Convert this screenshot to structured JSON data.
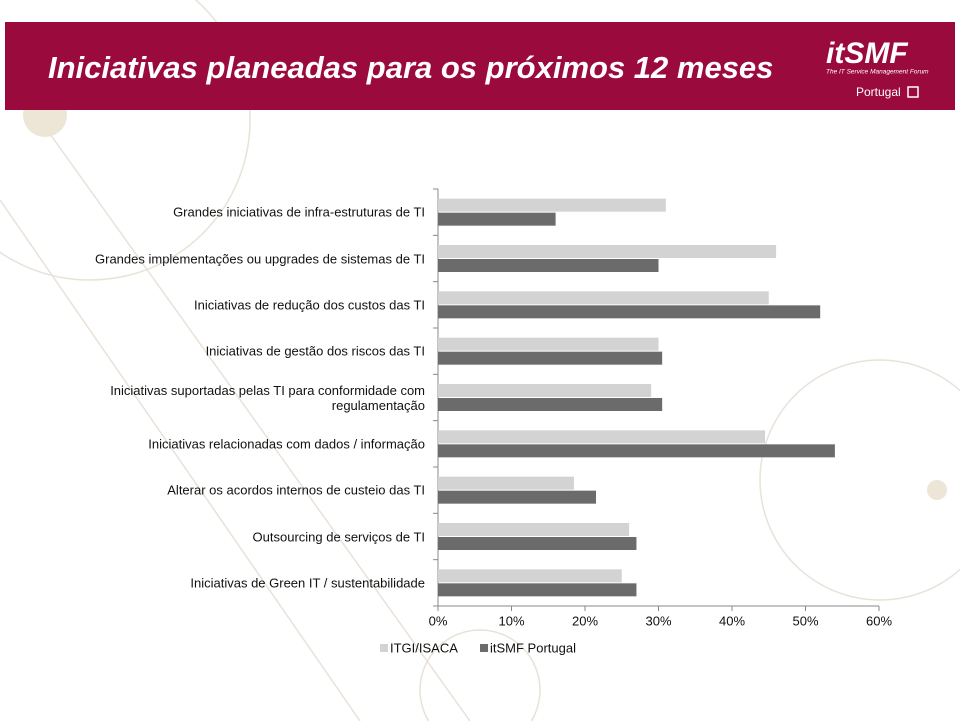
{
  "header": {
    "title": "Iniciativas planeadas para os próximos 12 meses",
    "logo": "itSMF",
    "logo_subtitle": "The IT Service Management Forum",
    "region": "Portugal"
  },
  "chart_data": {
    "type": "barh",
    "categories": [
      "Grandes iniciativas de infra-estruturas de TI",
      "Grandes implementações ou upgrades de sistemas de TI",
      "Iniciativas de redução dos custos das TI",
      "Iniciativas de gestão dos riscos das TI",
      "Iniciativas suportadas pelas TI para conformidade com\nregulamentação",
      "Iniciativas relacionadas com dados / informação",
      "Alterar os acordos internos de custeio das TI",
      "Outsourcing de serviços de TI",
      "Iniciativas de Green IT / sustentabilidade"
    ],
    "series": [
      {
        "name": "ITGI/ISACA",
        "color": "#d3d3d3",
        "values": [
          31,
          46,
          45,
          30,
          29,
          44.5,
          18.5,
          26,
          25
        ]
      },
      {
        "name": "itSMF Portugal",
        "color": "#6b6b6b",
        "values": [
          16,
          30,
          52,
          30.5,
          30.5,
          54,
          21.5,
          27,
          27
        ]
      }
    ],
    "xlim": [
      0,
      60
    ],
    "xticks": [
      {
        "value": 0,
        "label": "0%"
      },
      {
        "value": 10,
        "label": "10%"
      },
      {
        "value": 20,
        "label": "20%"
      },
      {
        "value": 30,
        "label": "30%"
      },
      {
        "value": 40,
        "label": "40%"
      },
      {
        "value": 50,
        "label": "50%"
      },
      {
        "value": 60,
        "label": "60%"
      }
    ],
    "grid": false,
    "legend": "bottom"
  }
}
